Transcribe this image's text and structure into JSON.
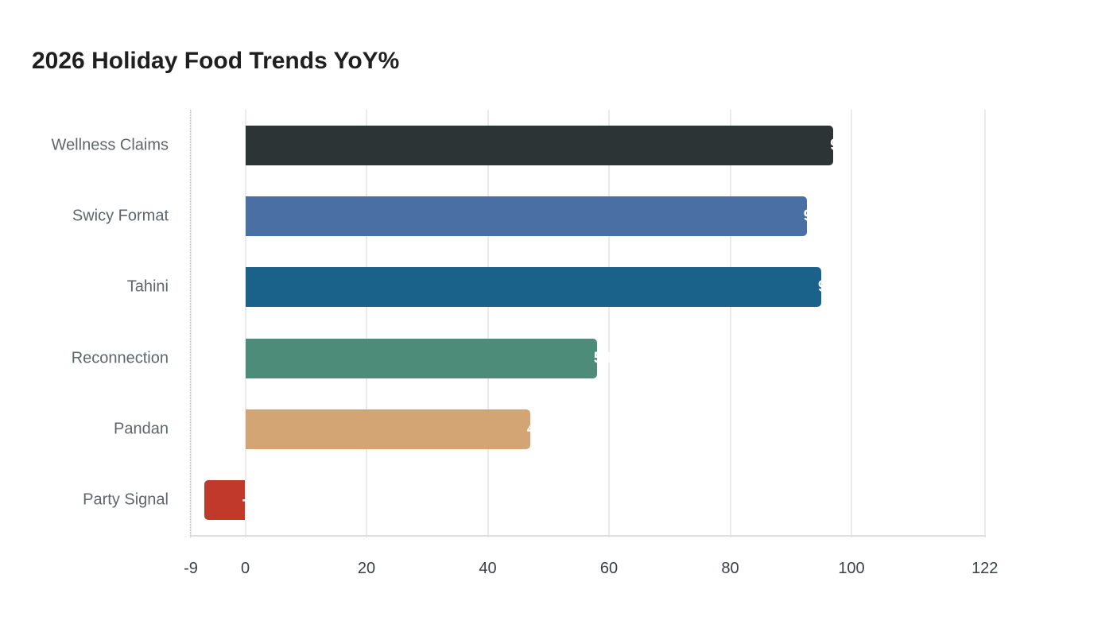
{
  "title": "2026 Holiday Food Trends YoY%",
  "chart_data": {
    "type": "bar",
    "orientation": "horizontal",
    "title": "2026 Holiday Food Trends YoY%",
    "xlabel": "",
    "ylabel": "",
    "categories": [
      "Wellness Claims",
      "Swicy Format",
      "Tahini",
      "Reconnection",
      "Pandan",
      "Party Signal"
    ],
    "values": [
      97,
      92.6,
      95,
      58,
      47,
      -6.8
    ],
    "colors": [
      "#2d3436",
      "#4a6fa5",
      "#1a6289",
      "#4e8c7a",
      "#d4a574",
      "#c0392b"
    ],
    "xlim": [
      -9,
      122
    ],
    "xticks": [
      -9,
      0,
      20,
      40,
      60,
      80,
      100,
      122
    ],
    "xtick_labels": [
      "-9",
      "0",
      "20",
      "40",
      "60",
      "80",
      "100",
      "122"
    ],
    "grid": true,
    "legend": "none",
    "value_labels": [
      "97",
      "92.6",
      "95",
      "58",
      "47",
      "-6.8"
    ]
  }
}
